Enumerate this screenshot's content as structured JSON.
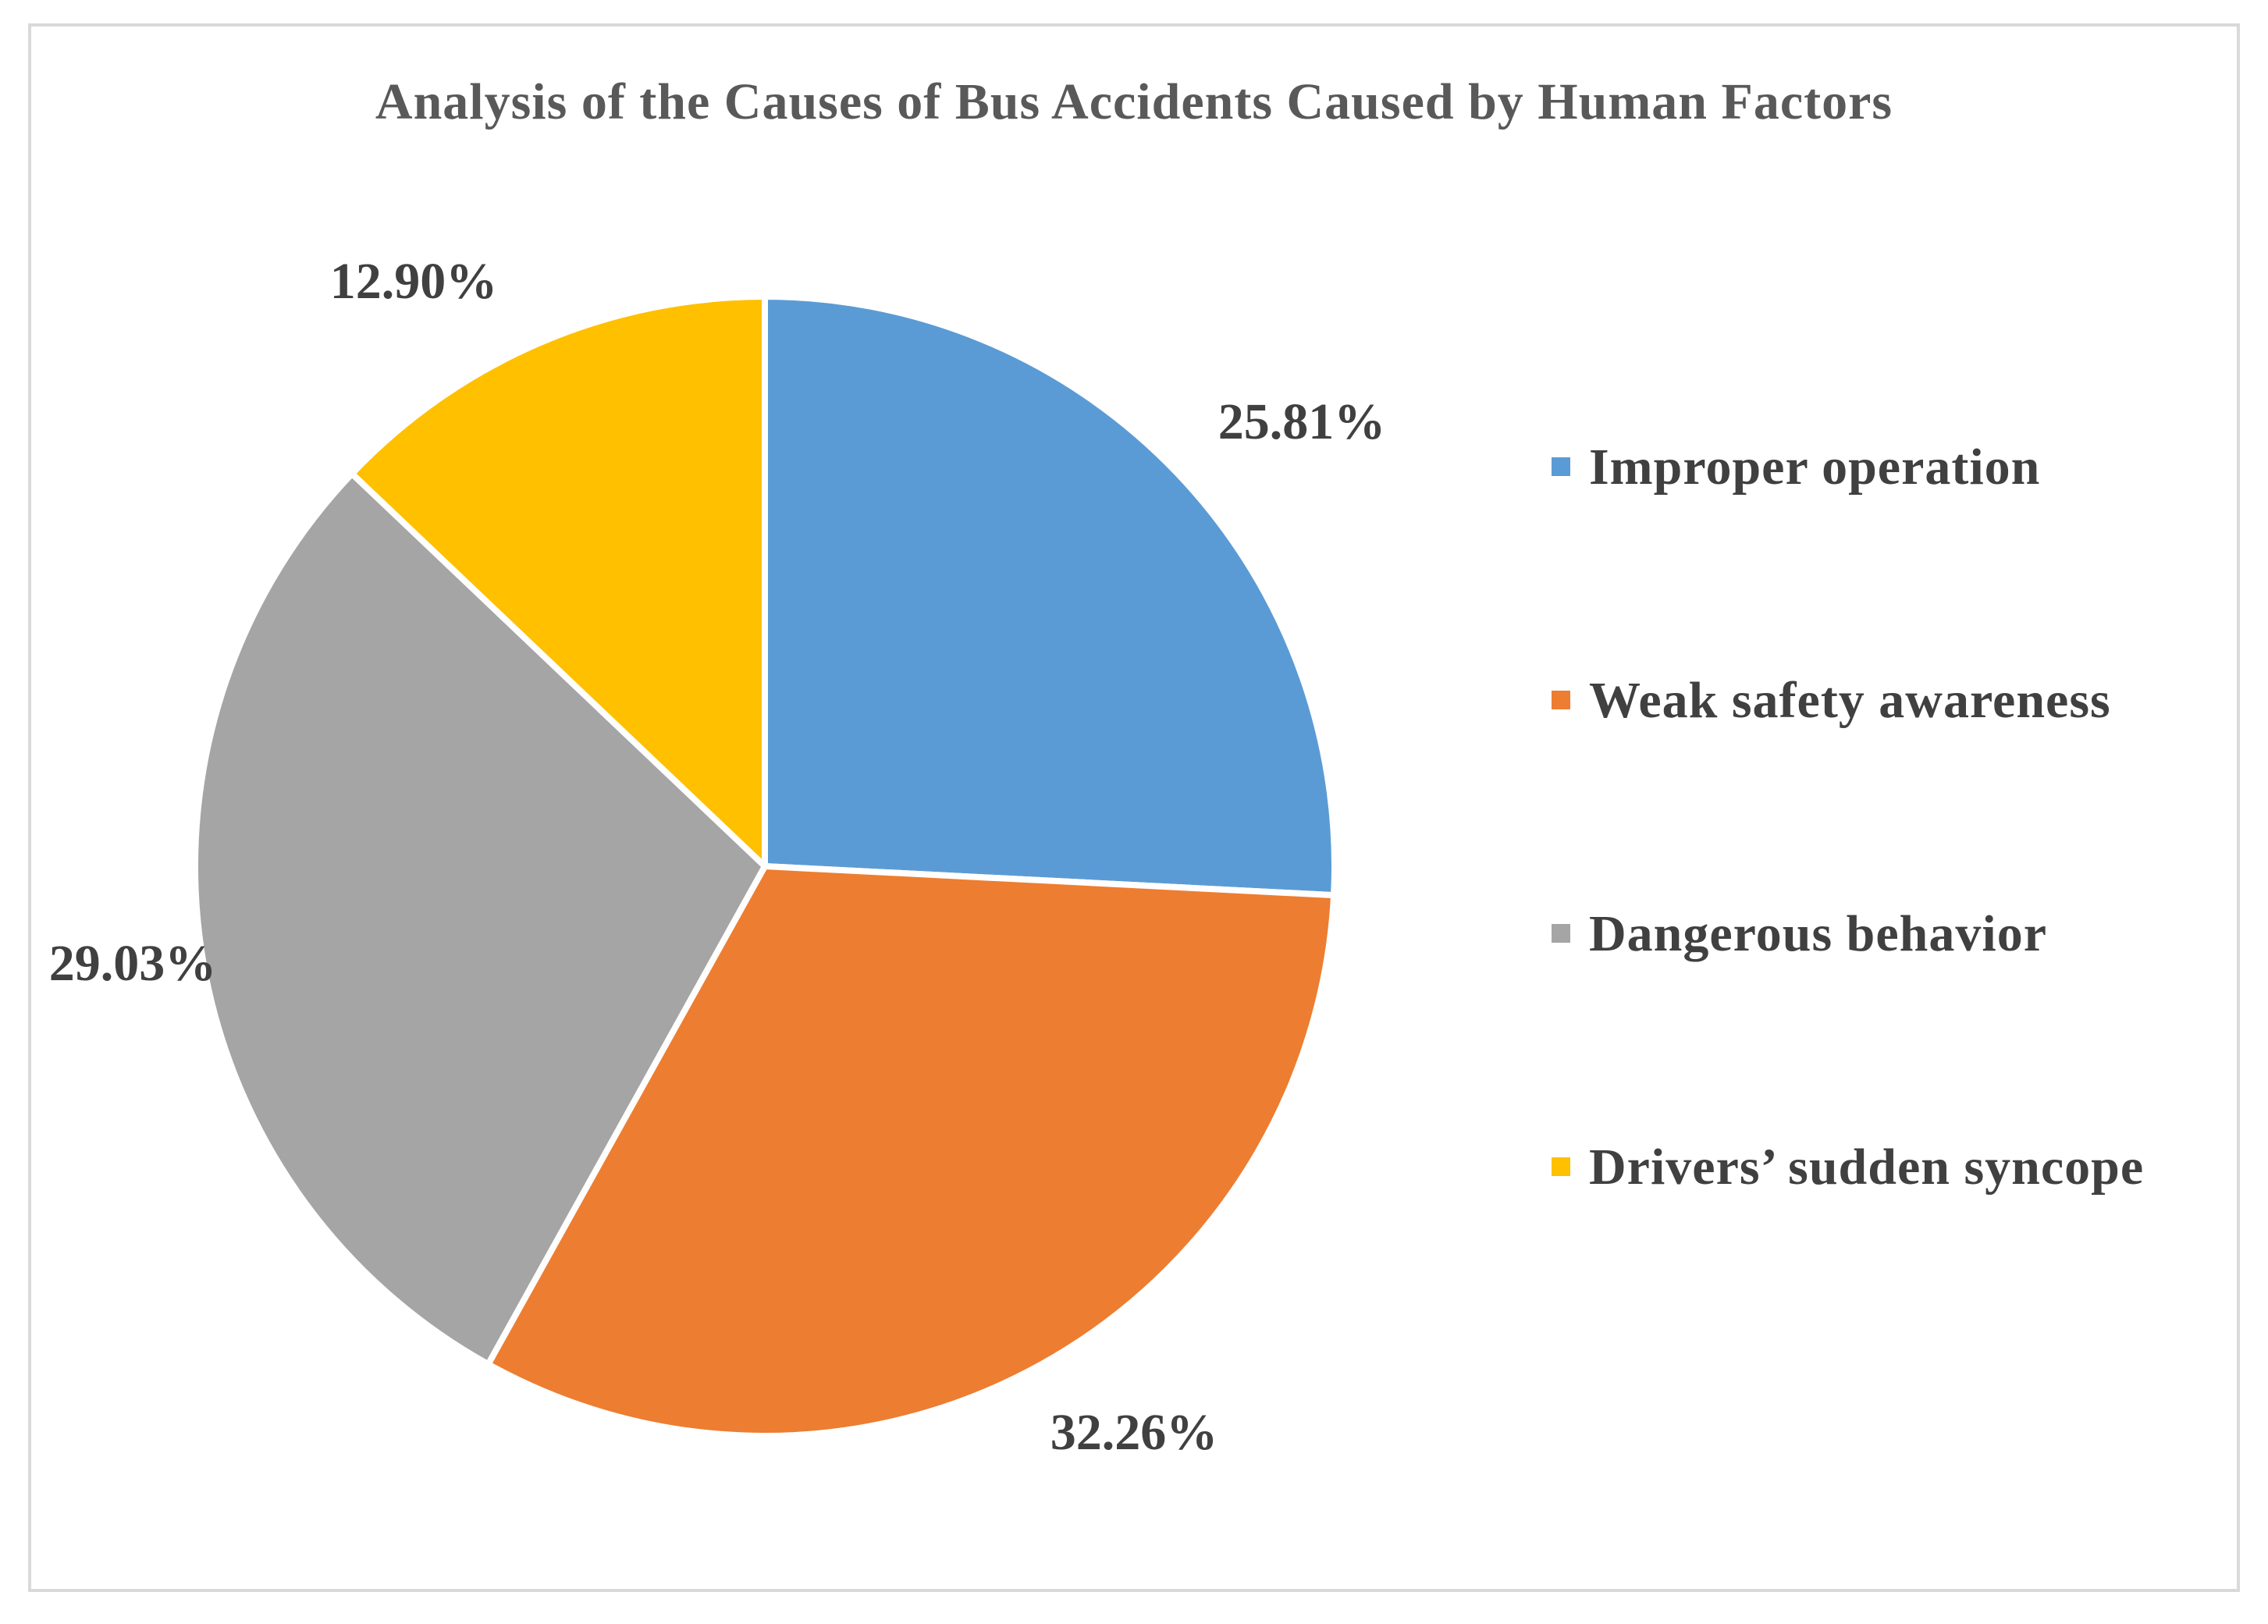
{
  "chart_data": {
    "type": "pie",
    "title": "Analysis of the Causes of Bus Accidents Caused by Human Factors",
    "categories": [
      "Improper operation",
      "Weak safety awareness",
      "Dangerous behavior",
      "Drivers’ sudden syncope"
    ],
    "values": [
      25.81,
      32.26,
      29.03,
      12.9
    ],
    "value_labels": [
      "25.81%",
      "32.26%",
      "29.03%",
      "12.90%"
    ],
    "colors": [
      "#5b9bd5",
      "#ed7d31",
      "#a5a5a5",
      "#ffc000"
    ],
    "start_angle_deg": 0,
    "direction": "clockwise",
    "legend_position": "right"
  }
}
